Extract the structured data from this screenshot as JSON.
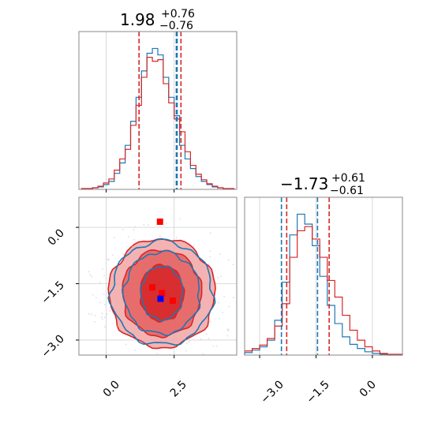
{
  "chart_data": {
    "type": "corner",
    "colors": {
      "a": "#1f77b4",
      "b": "#d62728",
      "marker_red": "#ff0000",
      "marker_blue": "#0000ff"
    },
    "param_x": {
      "title_main": "1.98",
      "title_plus": "+0.76",
      "title_minus": "−0.76",
      "xlim": [
        -1.0,
        4.8
      ],
      "ticks": [
        0.0,
        2.5
      ],
      "tick_labels": [
        "0.0",
        "2.5"
      ],
      "quantile_lines": {
        "red": [
          1.21,
          2.75
        ],
        "blue": [
          2.61,
          2.58
        ]
      },
      "hist_centers": [
        -0.8,
        -0.6,
        -0.4,
        -0.2,
        0.0,
        0.2,
        0.4,
        0.6,
        0.8,
        1.0,
        1.2,
        1.4,
        1.6,
        1.8,
        2.0,
        2.2,
        2.4,
        2.6,
        2.8,
        3.0,
        3.2,
        3.4,
        3.6,
        3.8,
        4.0,
        4.2,
        4.4,
        4.6
      ],
      "hist_blue": [
        1,
        1,
        2,
        3,
        6,
        10,
        20,
        33,
        55,
        85,
        115,
        148,
        170,
        176,
        168,
        140,
        115,
        92,
        55,
        38,
        26,
        16,
        10,
        6,
        3,
        2,
        1,
        1
      ],
      "hist_red": [
        1,
        1,
        2,
        4,
        8,
        13,
        24,
        38,
        50,
        80,
        105,
        140,
        165,
        160,
        162,
        132,
        108,
        88,
        72,
        47,
        30,
        19,
        12,
        7,
        4,
        2,
        1,
        1
      ]
    },
    "param_y": {
      "title_main": "−1.73",
      "title_plus": "+0.61",
      "title_minus": "−0.61",
      "ylim": [
        -3.4,
        0.8
      ],
      "xlim": [
        -3.4,
        0.8
      ],
      "ticks": [
        -3.0,
        -1.5,
        0.0
      ],
      "tick_labels": [
        "−3.0",
        "−1.5",
        "0.0"
      ],
      "quantile_lines": {
        "red": [
          -2.28,
          -1.15
        ],
        "blue": [
          -2.42,
          -1.46
        ]
      },
      "hist_centers": [
        -3.3,
        -3.1,
        -2.9,
        -2.7,
        -2.5,
        -2.3,
        -2.1,
        -1.9,
        -1.7,
        -1.5,
        -1.3,
        -1.1,
        -0.9,
        -0.7,
        -0.5,
        -0.3,
        -0.1,
        0.1,
        0.3,
        0.5,
        0.7
      ],
      "hist_blue": [
        3,
        6,
        10,
        18,
        42,
        88,
        145,
        170,
        158,
        132,
        95,
        60,
        38,
        22,
        13,
        8,
        4,
        2,
        1,
        0,
        0
      ],
      "hist_red": [
        5,
        8,
        12,
        20,
        35,
        62,
        118,
        150,
        155,
        140,
        118,
        90,
        70,
        48,
        30,
        18,
        10,
        5,
        2,
        1,
        1
      ]
    },
    "scatter_markers": {
      "red": [
        [
          1.98,
          0.15
        ],
        [
          1.7,
          -1.6
        ],
        [
          2.05,
          -1.75
        ],
        [
          2.45,
          -1.95
        ]
      ],
      "blue": [
        [
          2.0,
          -1.9
        ]
      ]
    },
    "contour_center": [
      2.05,
      -1.75
    ],
    "contour_radii": {
      "x": [
        0.8,
        1.45,
        1.95
      ],
      "y": [
        0.75,
        1.15,
        1.45
      ]
    }
  }
}
